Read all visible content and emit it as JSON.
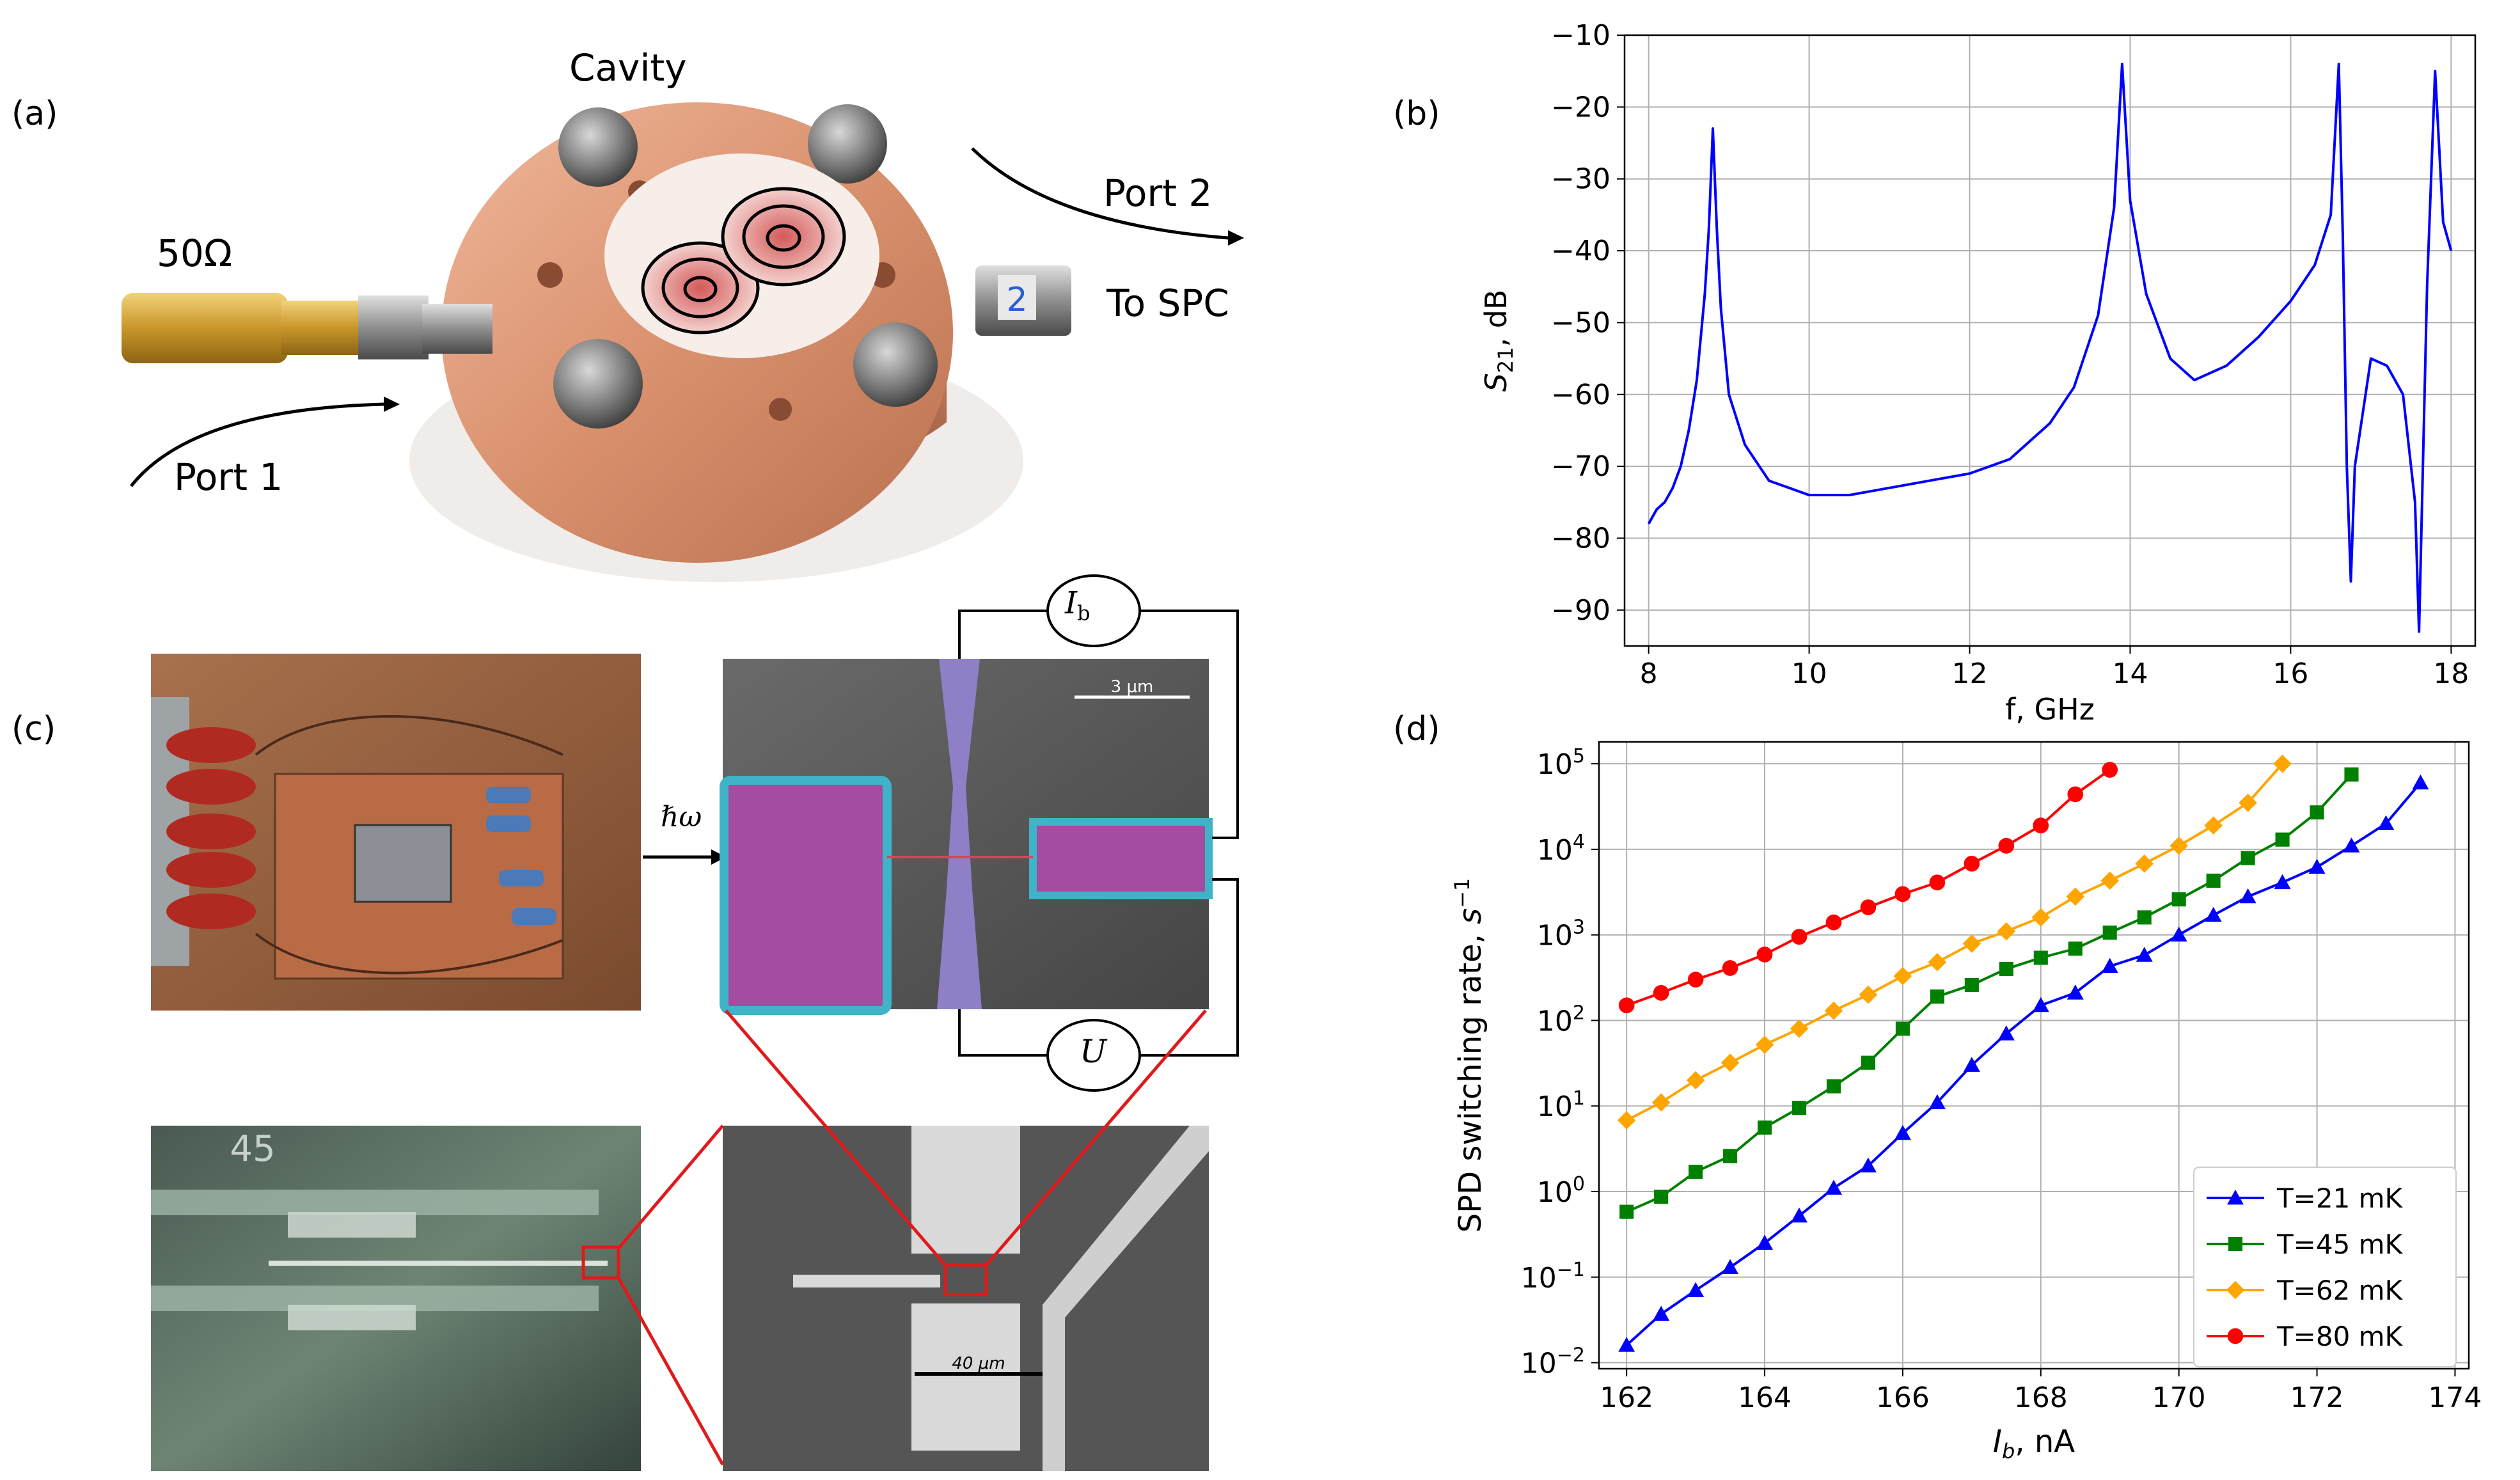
{
  "panels": {
    "a": {
      "label": "(a)",
      "cavity": "Cavity",
      "load": "50Ω",
      "port1": "Port 1",
      "port2": "Port 2",
      "to_spc": "To SPC",
      "connector_mark": "2"
    },
    "b": {
      "label": "(b)"
    },
    "c": {
      "label": "(c)",
      "photon": "ℏω",
      "ib": "I",
      "ib_sub": "b",
      "u": "U",
      "scale_3um": "3 μm",
      "scale_40um": "40 μm",
      "chip_mark": "45"
    },
    "d": {
      "label": "(d)"
    }
  },
  "chart_data": [
    {
      "panel": "b",
      "type": "line",
      "xlabel": "f, GHz",
      "ylabel": "S21, dB",
      "ylabel_main": "S",
      "ylabel_sub": "21",
      "ylabel_unit": ", dB",
      "xlim": [
        7.7,
        18.3
      ],
      "ylim": [
        -95,
        -10
      ],
      "xticks": [
        8,
        10,
        12,
        14,
        16,
        18
      ],
      "yticks": [
        -90,
        -80,
        -70,
        -60,
        -50,
        -40,
        -30,
        -20,
        -10
      ],
      "grid": true,
      "color": "#0000ff",
      "resonances_ghz": [
        8.8,
        13.9,
        16.6,
        17.8
      ],
      "x": [
        8.0,
        8.1,
        8.2,
        8.3,
        8.4,
        8.5,
        8.6,
        8.7,
        8.75,
        8.8,
        8.85,
        8.9,
        9.0,
        9.2,
        9.5,
        10.0,
        10.5,
        11.0,
        11.5,
        12.0,
        12.5,
        13.0,
        13.3,
        13.6,
        13.8,
        13.9,
        14.0,
        14.2,
        14.5,
        14.8,
        15.2,
        15.6,
        16.0,
        16.3,
        16.5,
        16.6,
        16.65,
        16.7,
        16.75,
        16.8,
        17.0,
        17.2,
        17.4,
        17.55,
        17.6,
        17.7,
        17.8,
        17.9,
        18.0
      ],
      "y": [
        -78,
        -76,
        -75,
        -73,
        -70,
        -65,
        -58,
        -46,
        -37,
        -23,
        -37,
        -48,
        -60,
        -67,
        -72,
        -74,
        -74,
        -73,
        -72,
        -71,
        -69,
        -64,
        -59,
        -49,
        -34,
        -14,
        -33,
        -46,
        -55,
        -58,
        -56,
        -52,
        -47,
        -42,
        -35,
        -14,
        -38,
        -70,
        -86,
        -70,
        -55,
        -56,
        -60,
        -75,
        -93,
        -45,
        -15,
        -36,
        -40
      ]
    },
    {
      "panel": "d",
      "type": "line",
      "xlabel": "I_b, nA",
      "xlabel_main": "I",
      "xlabel_sub": "b",
      "xlabel_unit": ", nA",
      "ylabel": "SPD switching rate, s^-1",
      "ylabel_main": "SPD switching rate, ",
      "ylabel_var": "s",
      "ylabel_sup": "−1",
      "yscale": "log",
      "xlim": [
        161.6,
        174.2
      ],
      "ylim": [
        0.0085,
        180000
      ],
      "xticks": [
        162,
        164,
        166,
        168,
        170,
        172,
        174
      ],
      "yticks": [
        {
          "base": "10",
          "exp": "−2",
          "value": 0.01
        },
        {
          "base": "10",
          "exp": "−1",
          "value": 0.1
        },
        {
          "base": "10",
          "exp": "0",
          "value": 1
        },
        {
          "base": "10",
          "exp": "1",
          "value": 10
        },
        {
          "base": "10",
          "exp": "2",
          "value": 100
        },
        {
          "base": "10",
          "exp": "3",
          "value": 1000
        },
        {
          "base": "10",
          "exp": "4",
          "value": 10000
        },
        {
          "base": "10",
          "exp": "5",
          "value": 100000
        }
      ],
      "grid": true,
      "legend_position": "bottom-right",
      "series": [
        {
          "name": "T=21 mK",
          "color": "#0000ff",
          "marker": "triangle",
          "x": [
            162,
            162.5,
            163,
            163.5,
            164,
            164.5,
            165,
            165.5,
            166,
            166.5,
            167,
            167.5,
            168,
            168.5,
            169,
            169.5,
            170,
            170.5,
            171,
            171.5,
            172,
            172.5,
            173,
            173.5
          ],
          "y": [
            0.016,
            0.037,
            0.07,
            0.13,
            0.25,
            0.52,
            1.1,
            2.0,
            4.8,
            11,
            30,
            70,
            150,
            210,
            430,
            580,
            1000,
            1700,
            2800,
            4100,
            6200,
            11000,
            20000,
            60000
          ]
        },
        {
          "name": "T=45 mK",
          "color": "#008000",
          "marker": "square",
          "x": [
            162,
            162.5,
            163,
            163.5,
            164,
            164.5,
            165,
            165.5,
            166,
            166.5,
            167,
            167.5,
            168,
            168.5,
            169,
            169.5,
            170,
            170.5,
            171,
            171.5,
            172,
            172.5
          ],
          "y": [
            0.58,
            0.87,
            1.7,
            2.6,
            5.6,
            9.5,
            17,
            32,
            80,
            190,
            260,
            400,
            540,
            690,
            1060,
            1600,
            2600,
            4300,
            7900,
            13000,
            27000,
            75000
          ]
        },
        {
          "name": "T=62 mK",
          "color": "#ffa500",
          "marker": "diamond",
          "x": [
            162,
            162.5,
            163,
            163.5,
            164,
            164.5,
            165,
            165.5,
            166,
            166.5,
            167,
            167.5,
            168,
            168.5,
            169,
            169.5,
            170,
            170.5,
            171,
            171.5
          ],
          "y": [
            6.8,
            11,
            20,
            32,
            52,
            80,
            130,
            200,
            330,
            480,
            790,
            1100,
            1600,
            2800,
            4300,
            6800,
            11000,
            19000,
            35000,
            100000
          ]
        },
        {
          "name": "T=80 mK",
          "color": "#ff0000",
          "marker": "circle",
          "x": [
            162,
            162.5,
            163,
            163.5,
            164,
            164.5,
            165,
            165.5,
            166,
            166.5,
            167,
            167.5,
            168,
            168.5,
            169
          ],
          "y": [
            150,
            210,
            300,
            410,
            590,
            950,
            1400,
            2100,
            3000,
            4100,
            6800,
            11000,
            19000,
            44000,
            85000
          ]
        }
      ]
    }
  ]
}
